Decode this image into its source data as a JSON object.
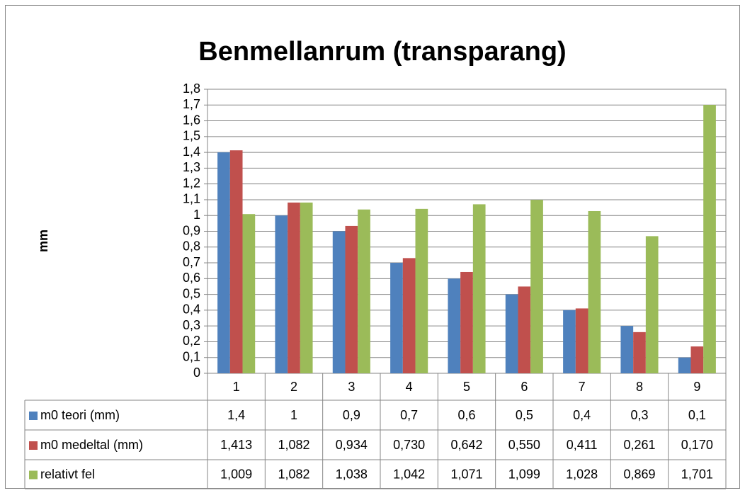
{
  "chart_data": {
    "type": "bar",
    "title": "Benmellanrum (transparang)",
    "y_label": "mm",
    "categories": [
      "1",
      "2",
      "3",
      "4",
      "5",
      "6",
      "7",
      "8",
      "9"
    ],
    "series": [
      {
        "name": "m0 teori (mm)",
        "color": "#4f81bd",
        "values": [
          1.4,
          1,
          0.9,
          0.7,
          0.6,
          0.5,
          0.4,
          0.3,
          0.1
        ],
        "value_labels": [
          "1,4",
          "1",
          "0,9",
          "0,7",
          "0,6",
          "0,5",
          "0,4",
          "0,3",
          "0,1"
        ]
      },
      {
        "name": "m0 medeltal (mm)",
        "color": "#c0504d",
        "values": [
          1.413,
          1.082,
          0.934,
          0.73,
          0.642,
          0.55,
          0.411,
          0.261,
          0.17
        ],
        "value_labels": [
          "1,413",
          "1,082",
          "0,934",
          "0,730",
          "0,642",
          "0,550",
          "0,411",
          "0,261",
          "0,170"
        ]
      },
      {
        "name": "relativt fel",
        "color": "#9bbb59",
        "values": [
          1.009,
          1.082,
          1.038,
          1.042,
          1.071,
          1.099,
          1.028,
          0.869,
          1.701
        ],
        "value_labels": [
          "1,009",
          "1,082",
          "1,038",
          "1,042",
          "1,071",
          "1,099",
          "1,028",
          "0,869",
          "1,701"
        ]
      }
    ],
    "ylim": [
      0,
      1.8
    ],
    "yticks": [
      0,
      {
        "value": 0.1,
        "label": "0,1"
      },
      {
        "value": 0.2,
        "label": "0,2"
      },
      {
        "value": 0.3,
        "label": "0,3"
      },
      {
        "value": 0.4,
        "label": "0,4"
      },
      {
        "value": 0.5,
        "label": "0,5"
      },
      {
        "value": 0.6,
        "label": "0,6"
      },
      {
        "value": 0.7,
        "label": "0,7"
      },
      {
        "value": 0.8,
        "label": "0,8"
      },
      {
        "value": 0.9,
        "label": "0,9"
      },
      1,
      {
        "value": 1.1,
        "label": "1,1"
      },
      {
        "value": 1.2,
        "label": "1,2"
      },
      {
        "value": 1.3,
        "label": "1,3"
      },
      {
        "value": 1.4,
        "label": "1,4"
      },
      {
        "value": 1.5,
        "label": "1,5"
      },
      {
        "value": 1.6,
        "label": "1,6"
      },
      {
        "value": 1.7,
        "label": "1,7"
      },
      {
        "value": 1.8,
        "label": "1,8"
      }
    ],
    "grid": true,
    "data_table": true
  }
}
